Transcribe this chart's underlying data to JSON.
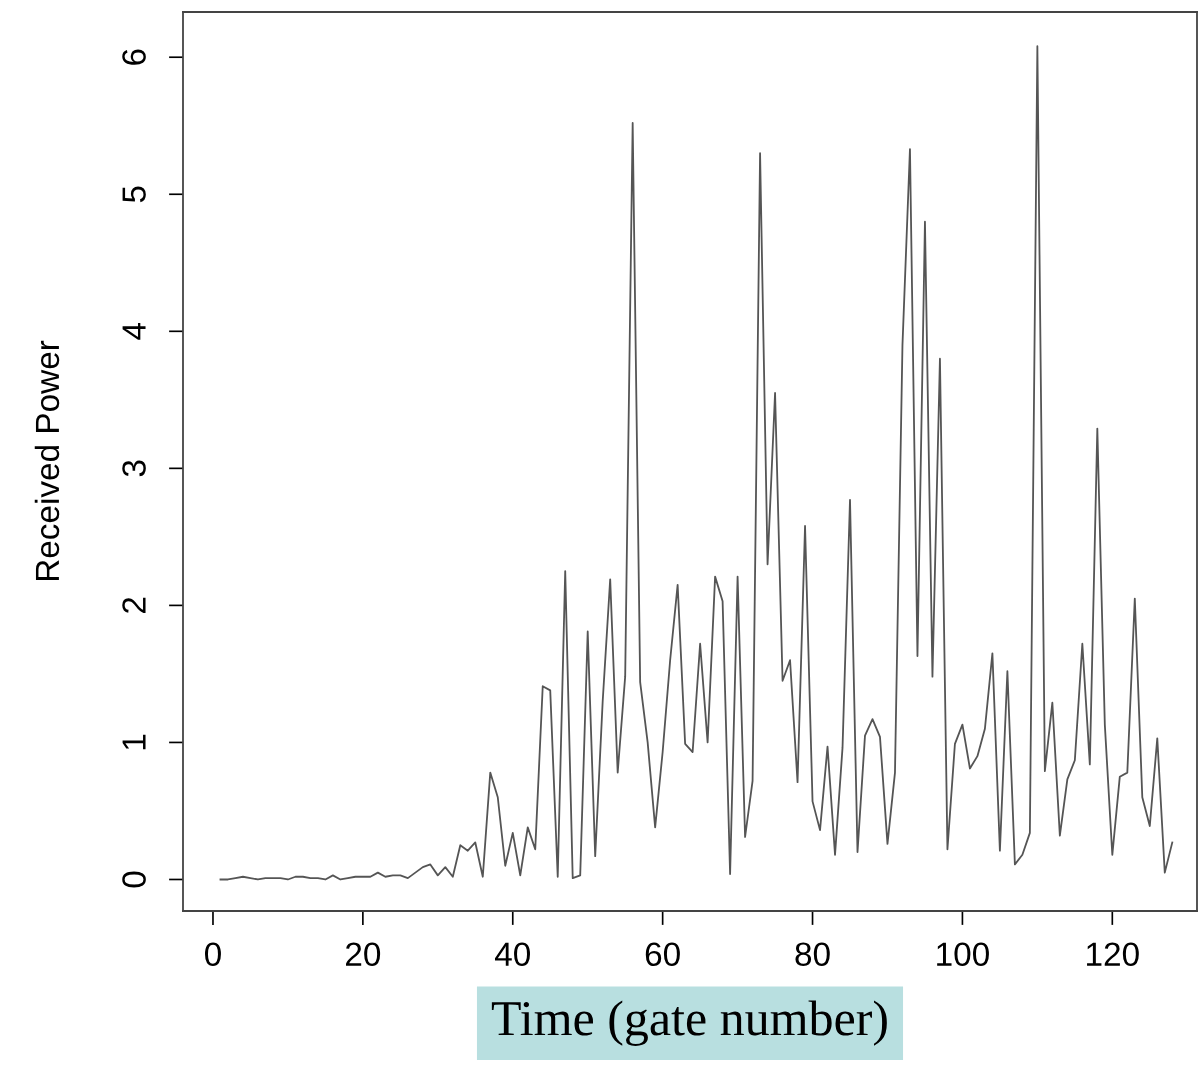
{
  "chart_data": {
    "type": "line",
    "xlabel": "Time (gate number)",
    "ylabel": "Received Power",
    "x": [
      1,
      2,
      3,
      4,
      5,
      6,
      7,
      8,
      9,
      10,
      11,
      12,
      13,
      14,
      15,
      16,
      17,
      18,
      19,
      20,
      21,
      22,
      23,
      24,
      25,
      26,
      27,
      28,
      29,
      30,
      31,
      32,
      33,
      34,
      35,
      36,
      37,
      38,
      39,
      40,
      41,
      42,
      43,
      44,
      45,
      46,
      47,
      48,
      49,
      50,
      51,
      52,
      53,
      54,
      55,
      56,
      57,
      58,
      59,
      60,
      61,
      62,
      63,
      64,
      65,
      66,
      67,
      68,
      69,
      70,
      71,
      72,
      73,
      74,
      75,
      76,
      77,
      78,
      79,
      80,
      81,
      82,
      83,
      84,
      85,
      86,
      87,
      88,
      89,
      90,
      91,
      92,
      93,
      94,
      95,
      96,
      97,
      98,
      99,
      100,
      101,
      102,
      103,
      104,
      105,
      106,
      107,
      108,
      109,
      110,
      111,
      112,
      113,
      114,
      115,
      116,
      117,
      118,
      119,
      120,
      121,
      122,
      123,
      124,
      125,
      126,
      127,
      128
    ],
    "series": [
      {
        "color": "#555555",
        "values": [
          0.0,
          0.0,
          0.01,
          0.02,
          0.01,
          0.0,
          0.01,
          0.01,
          0.01,
          0.0,
          0.02,
          0.02,
          0.01,
          0.01,
          0.0,
          0.03,
          0.0,
          0.01,
          0.02,
          0.02,
          0.02,
          0.05,
          0.02,
          0.03,
          0.03,
          0.01,
          0.05,
          0.09,
          0.11,
          0.03,
          0.09,
          0.02,
          0.25,
          0.21,
          0.27,
          0.02,
          0.78,
          0.6,
          0.1,
          0.34,
          0.03,
          0.38,
          0.22,
          1.41,
          1.38,
          0.02,
          2.25,
          0.01,
          0.03,
          1.81,
          0.17,
          1.3,
          2.19,
          0.78,
          1.48,
          5.52,
          1.44,
          1.0,
          0.38,
          0.93,
          1.6,
          2.15,
          0.99,
          0.93,
          1.72,
          1.0,
          2.21,
          2.03,
          0.04,
          2.21,
          0.31,
          0.72,
          5.3,
          2.3,
          3.55,
          1.45,
          1.6,
          0.71,
          2.58,
          0.57,
          0.36,
          0.97,
          0.18,
          0.96,
          2.77,
          0.2,
          1.05,
          1.17,
          1.04,
          0.26,
          0.78,
          3.9,
          5.33,
          1.63,
          4.8,
          1.48,
          3.8,
          0.22,
          0.99,
          1.13,
          0.81,
          0.9,
          1.1,
          1.65,
          0.21,
          1.52,
          0.11,
          0.18,
          0.34,
          6.08,
          0.79,
          1.29,
          0.32,
          0.73,
          0.87,
          1.72,
          0.84,
          3.29,
          1.13,
          0.18,
          0.75,
          0.78,
          2.05,
          0.6,
          0.39,
          1.03,
          0.05,
          0.27
        ]
      }
    ],
    "xlim": [
      -4,
      131.3
    ],
    "ylim": [
      -0.23,
      6.33
    ],
    "xticks": [
      0,
      20,
      40,
      60,
      80,
      100,
      120
    ],
    "yticks": [
      0,
      1,
      2,
      3,
      4,
      5,
      6
    ],
    "grid": false,
    "legend": false,
    "marker": "none",
    "line_style": "solid"
  }
}
